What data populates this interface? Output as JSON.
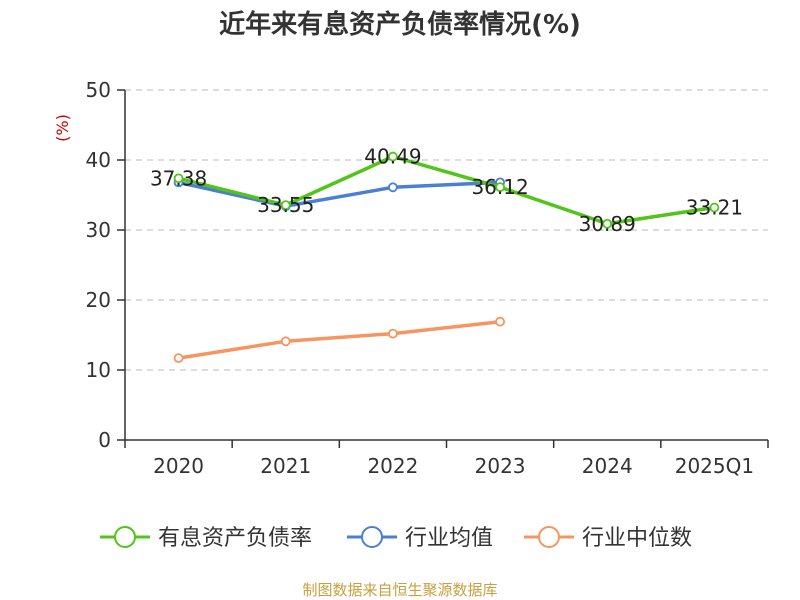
{
  "chart_data": {
    "type": "line",
    "title": "近年来有息资产负债率情况(%)",
    "ylabel": "(%)",
    "categories": [
      "2020",
      "2021",
      "2022",
      "2023",
      "2024",
      "2025Q1"
    ],
    "ylim": [
      0,
      50
    ],
    "yticks": [
      0,
      10,
      20,
      30,
      40,
      50
    ],
    "grid": true,
    "legend_position": "bottom",
    "series": [
      {
        "name": "有息资产负债率",
        "color": "#52c41a",
        "values": [
          37.38,
          33.55,
          40.49,
          36.12,
          30.89,
          33.21
        ],
        "show_labels": true
      },
      {
        "name": "行业均值",
        "color": "#4a7fd4",
        "values": [
          36.8,
          33.4,
          36.1,
          36.8,
          null,
          null
        ],
        "show_labels": false
      },
      {
        "name": "行业中位数",
        "color": "#f79560",
        "values": [
          11.7,
          14.1,
          15.2,
          16.9,
          null,
          null
        ],
        "show_labels": false
      }
    ]
  },
  "source": "制图数据来自恒生聚源数据库"
}
